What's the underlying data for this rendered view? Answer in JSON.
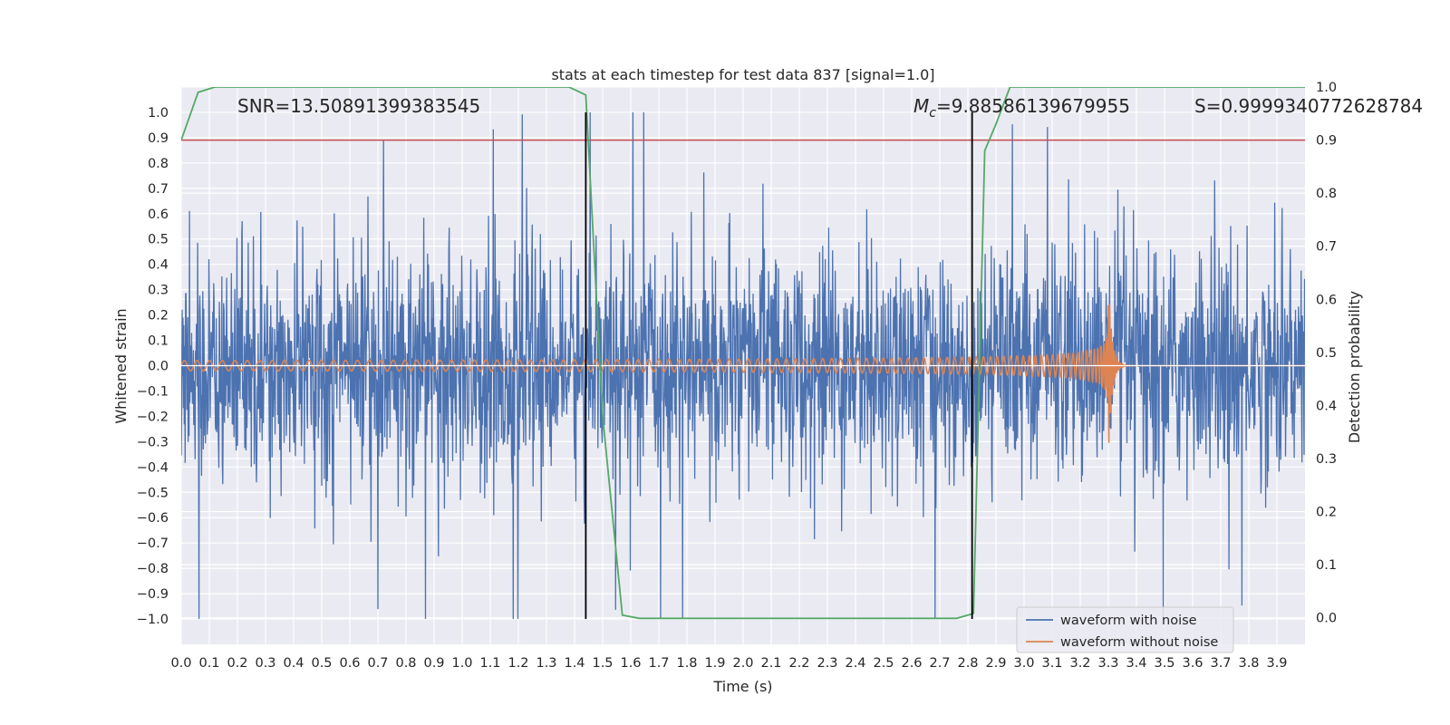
{
  "chart_data": {
    "type": "line",
    "title": "stats at each timestep for test data 837 [signal=1.0]",
    "xlabel": "Time (s)",
    "ylabel": "Whitened strain",
    "y2label": "Detection probability",
    "xlim": [
      0.0,
      4.0
    ],
    "ylim": [
      -1.1,
      1.1
    ],
    "y2lim": [
      -0.05,
      1.0
    ],
    "x_ticks": [
      "0.0",
      "0.1",
      "0.2",
      "0.3",
      "0.4",
      "0.5",
      "0.6",
      "0.7",
      "0.8",
      "0.9",
      "1.0",
      "1.1",
      "1.2",
      "1.3",
      "1.4",
      "1.5",
      "1.6",
      "1.7",
      "1.8",
      "1.9",
      "2.0",
      "2.1",
      "2.2",
      "2.3",
      "2.4",
      "2.5",
      "2.6",
      "2.7",
      "2.8",
      "2.9",
      "3.0",
      "3.1",
      "3.2",
      "3.3",
      "3.4",
      "3.5",
      "3.6",
      "3.7",
      "3.8",
      "3.9"
    ],
    "y_ticks": [
      "1.0",
      "0.9",
      "0.8",
      "0.7",
      "0.6",
      "0.5",
      "0.4",
      "0.3",
      "0.2",
      "0.1",
      "0.0",
      "−0.1",
      "−0.2",
      "−0.3",
      "−0.4",
      "−0.5",
      "−0.6",
      "−0.7",
      "−0.8",
      "−0.9",
      "−1.0"
    ],
    "y2_ticks": [
      "1.0",
      "0.9",
      "0.8",
      "0.7",
      "0.6",
      "0.5",
      "0.4",
      "0.3",
      "0.2",
      "0.1",
      "0.0"
    ],
    "annotations": {
      "snr": "SNR=13.50891399383545",
      "mc_symbol": "M",
      "mc_sub": "c",
      "mc_value": "=9.88586139679955",
      "s": "S=0.9999340772628784"
    },
    "legend": {
      "placement": "lower-right",
      "entries": [
        "waveform with noise",
        "waveform without noise"
      ]
    },
    "threshold": {
      "value": 0.9,
      "axis": "right",
      "color": "#c44e52"
    },
    "vertical_lines": [
      1.44,
      2.815
    ],
    "noisy_waveform": {
      "name": "waveform with noise",
      "color": "#4c72b0",
      "description_range": [
        -1.0,
        1.0
      ]
    },
    "clean_waveform": {
      "name": "waveform without noise",
      "color": "#dd8452",
      "merger_time": 3.3,
      "start_amplitude": 0.02,
      "peak_amplitude": 0.36,
      "start_frequency_hz": 22
    },
    "detection_probability": {
      "name": "detection probability",
      "color": "#55a868",
      "t": [
        0.0,
        0.06,
        0.12,
        0.2,
        0.6,
        1.0,
        1.38,
        1.44,
        1.5,
        1.57,
        1.63,
        2.0,
        2.5,
        2.76,
        2.82,
        2.86,
        2.9,
        2.95,
        3.2,
        3.9,
        4.0
      ],
      "p": [
        0.9,
        0.99,
        1.0,
        1.0,
        1.0,
        1.0,
        1.0,
        0.985,
        0.38,
        0.005,
        -0.001,
        -0.001,
        -0.001,
        -0.001,
        0.008,
        0.88,
        0.93,
        1.0,
        1.0,
        1.0,
        1.0
      ]
    }
  }
}
